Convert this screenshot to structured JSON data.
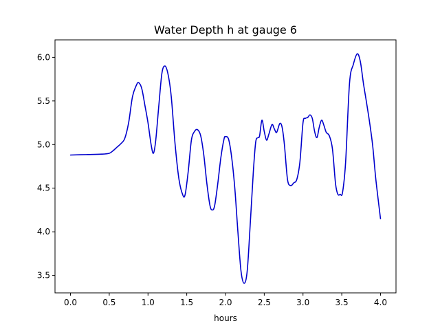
{
  "chart_data": {
    "type": "line",
    "title": "Water Depth h at gauge 6",
    "xlabel": "hours",
    "ylabel": "",
    "xlim": [
      -0.2,
      4.2
    ],
    "ylim": [
      3.3,
      6.2
    ],
    "xticks": [
      0.0,
      0.5,
      1.0,
      1.5,
      2.0,
      2.5,
      3.0,
      3.5,
      4.0
    ],
    "xtick_labels": [
      "0.0",
      "0.5",
      "1.0",
      "1.5",
      "2.0",
      "2.5",
      "3.0",
      "3.5",
      "4.0"
    ],
    "yticks": [
      3.5,
      4.0,
      4.5,
      5.0,
      5.5,
      6.0
    ],
    "ytick_labels": [
      "3.5",
      "4.0",
      "4.5",
      "5.0",
      "5.5",
      "6.0"
    ],
    "grid": false,
    "series": [
      {
        "color": "#0000cc",
        "x": [
          0.0,
          0.2,
          0.4,
          0.5,
          0.55,
          0.6,
          0.65,
          0.7,
          0.75,
          0.8,
          0.85,
          0.88,
          0.92,
          0.96,
          1.0,
          1.04,
          1.07,
          1.1,
          1.14,
          1.18,
          1.22,
          1.26,
          1.3,
          1.35,
          1.4,
          1.45,
          1.48,
          1.52,
          1.56,
          1.6,
          1.64,
          1.68,
          1.72,
          1.76,
          1.8,
          1.83,
          1.86,
          1.9,
          1.94,
          1.98,
          2.0,
          2.04,
          2.08,
          2.12,
          2.16,
          2.2,
          2.24,
          2.28,
          2.32,
          2.36,
          2.39,
          2.42,
          2.44,
          2.47,
          2.5,
          2.53,
          2.56,
          2.6,
          2.63,
          2.66,
          2.7,
          2.73,
          2.76,
          2.8,
          2.84,
          2.88,
          2.92,
          2.96,
          3.0,
          3.03,
          3.06,
          3.09,
          3.12,
          3.15,
          3.18,
          3.21,
          3.24,
          3.27,
          3.3,
          3.34,
          3.38,
          3.42,
          3.45,
          3.48,
          3.51,
          3.55,
          3.6,
          3.65,
          3.7,
          3.74,
          3.78,
          3.82,
          3.86,
          3.9,
          3.94,
          4.0
        ],
        "y": [
          4.88,
          4.885,
          4.89,
          4.9,
          4.93,
          4.97,
          5.01,
          5.07,
          5.25,
          5.55,
          5.68,
          5.71,
          5.64,
          5.45,
          5.25,
          5.0,
          4.9,
          5.05,
          5.45,
          5.82,
          5.9,
          5.8,
          5.55,
          5.0,
          4.6,
          4.42,
          4.43,
          4.7,
          5.05,
          5.15,
          5.17,
          5.1,
          4.88,
          4.55,
          4.3,
          4.25,
          4.3,
          4.55,
          4.85,
          5.06,
          5.09,
          5.06,
          4.85,
          4.5,
          4.0,
          3.55,
          3.41,
          3.55,
          4.1,
          4.7,
          5.03,
          5.08,
          5.1,
          5.28,
          5.15,
          5.05,
          5.12,
          5.23,
          5.18,
          5.14,
          5.24,
          5.2,
          5.0,
          4.6,
          4.53,
          4.56,
          4.6,
          4.8,
          5.25,
          5.3,
          5.31,
          5.34,
          5.3,
          5.15,
          5.08,
          5.2,
          5.28,
          5.22,
          5.14,
          5.1,
          4.95,
          4.55,
          4.43,
          4.43,
          4.45,
          4.8,
          5.7,
          5.92,
          6.04,
          5.95,
          5.7,
          5.48,
          5.25,
          4.98,
          4.6,
          4.15
        ]
      }
    ]
  }
}
